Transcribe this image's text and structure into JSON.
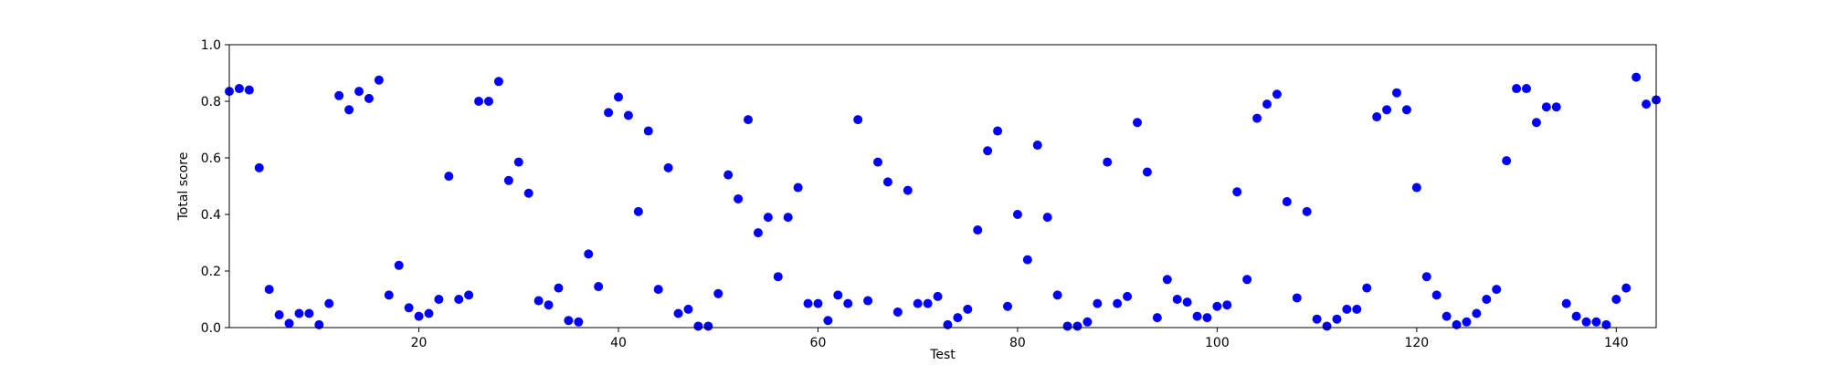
{
  "chart_data": {
    "type": "scatter",
    "title": "",
    "xlabel": "Test",
    "ylabel": "Total score",
    "xlim": [
      1,
      144
    ],
    "ylim": [
      0.0,
      1.0
    ],
    "x_ticks": [
      20,
      40,
      60,
      80,
      100,
      120,
      140
    ],
    "x_tick_labels": [
      "20",
      "40",
      "60",
      "80",
      "100",
      "120",
      "140"
    ],
    "y_ticks": [
      0.0,
      0.2,
      0.4,
      0.6,
      0.8,
      1.0
    ],
    "y_tick_labels": [
      "0.0",
      "0.2",
      "0.4",
      "0.6",
      "0.8",
      "1.0"
    ],
    "grid": false,
    "marker_color": "#0000ff",
    "series": [
      {
        "x": [
          1,
          2,
          3,
          4,
          5,
          6,
          7,
          8,
          9,
          10,
          11,
          12,
          13,
          14,
          15,
          16,
          17,
          18,
          19,
          20,
          21,
          22,
          23,
          24,
          25,
          26,
          27,
          28,
          29,
          30,
          31,
          32,
          33,
          34,
          35,
          36,
          37,
          38,
          39,
          40,
          41,
          42,
          43,
          44,
          45,
          46,
          47,
          48,
          49,
          50,
          51,
          52,
          53,
          54,
          55,
          56,
          57,
          58,
          59,
          60,
          61,
          62,
          63,
          64,
          65,
          66,
          67,
          68,
          69,
          70,
          71,
          72,
          73,
          74,
          75,
          76,
          77,
          78,
          79,
          80,
          81,
          82,
          83,
          84,
          85,
          86,
          87,
          88,
          89,
          90,
          91,
          92,
          93,
          94,
          95,
          96,
          97,
          98,
          99,
          100,
          101,
          102,
          103,
          104,
          105,
          106,
          107,
          108,
          109,
          110,
          111,
          112,
          113,
          114,
          115,
          116,
          117,
          118,
          119,
          120,
          121,
          122,
          123,
          124,
          125,
          126,
          127,
          128,
          129,
          130,
          131,
          132,
          133,
          134,
          135,
          136,
          137,
          138,
          139,
          140,
          141,
          142,
          143,
          144
        ],
        "y": [
          0.835,
          0.845,
          0.84,
          0.565,
          0.135,
          0.045,
          0.015,
          0.05,
          0.05,
          0.01,
          0.085,
          0.82,
          0.77,
          0.835,
          0.81,
          0.875,
          0.115,
          0.22,
          0.07,
          0.04,
          0.05,
          0.1,
          0.535,
          0.1,
          0.115,
          0.8,
          0.8,
          0.87,
          0.52,
          0.585,
          0.475,
          0.095,
          0.08,
          0.14,
          0.025,
          0.02,
          0.26,
          0.145,
          0.76,
          0.815,
          0.75,
          0.41,
          0.695,
          0.135,
          0.565,
          0.05,
          0.065,
          0.005,
          0.005,
          0.12,
          0.54,
          0.455,
          0.735,
          0.335,
          0.39,
          0.18,
          0.39,
          0.495,
          0.085,
          0.085,
          0.025,
          0.115,
          0.085,
          0.735,
          0.095,
          0.585,
          0.515,
          0.055,
          0.485,
          0.085,
          0.085,
          0.11,
          0.01,
          0.035,
          0.065,
          0.345,
          0.625,
          0.695,
          0.075,
          0.4,
          0.24,
          0.645,
          0.39,
          0.115,
          0.005,
          0.005,
          0.02,
          0.085,
          0.585,
          0.085,
          0.11,
          0.725,
          0.55,
          0.035,
          0.17,
          0.1,
          0.09,
          0.04,
          0.035,
          0.075,
          0.08,
          0.48,
          0.17,
          0.74,
          0.79,
          0.825,
          0.445,
          0.105,
          0.41,
          0.03,
          0.005,
          0.03,
          0.065,
          0.065,
          0.14,
          0.745,
          0.77,
          0.83,
          0.77,
          0.495,
          0.18,
          0.115,
          0.04,
          0.01,
          0.02,
          0.05,
          0.1,
          0.135,
          0.59,
          0.845,
          0.845,
          0.725,
          0.78,
          0.78,
          0.085,
          0.04,
          0.02,
          0.02,
          0.01,
          0.1,
          0.14,
          0.885,
          0.79,
          0.805
        ]
      }
    ]
  }
}
